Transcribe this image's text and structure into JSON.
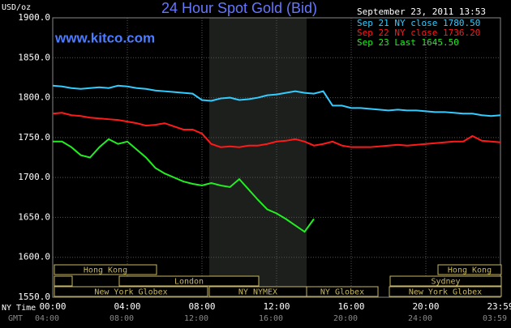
{
  "chart_data": {
    "type": "line",
    "title": "24 Hour Spot Gold (Bid)",
    "y_axis_label": "USD/oz",
    "watermark": "www.kitco.com",
    "timestamp": "September 23, 2011 13:53",
    "x_axis_label": "NY Time",
    "x2_axis_label": "GMT",
    "x": [
      0,
      0.5,
      1,
      1.5,
      2,
      2.5,
      3,
      3.5,
      4,
      4.5,
      5,
      5.5,
      6,
      6.5,
      7,
      7.5,
      8,
      8.5,
      9,
      9.5,
      10,
      10.5,
      11,
      11.5,
      12,
      12.5,
      13,
      13.5,
      14,
      14.5,
      15,
      15.5,
      16,
      16.5,
      17,
      17.5,
      18,
      18.5,
      19,
      19.5,
      20,
      20.5,
      21,
      21.5,
      22,
      22.5,
      23,
      23.5,
      24
    ],
    "series": [
      {
        "name": "Sep 21 NY close 1780.50",
        "color": "#33ccff",
        "values": [
          1815,
          1814,
          1812,
          1811,
          1812,
          1813,
          1812,
          1815,
          1814,
          1812,
          1811,
          1809,
          1808,
          1807,
          1806,
          1805,
          1797,
          1796,
          1799,
          1800,
          1797,
          1798,
          1800,
          1803,
          1804,
          1806,
          1808,
          1806,
          1805,
          1808,
          1790,
          1790,
          1787,
          1787,
          1786,
          1785,
          1784,
          1785,
          1784,
          1784,
          1783,
          1782,
          1782,
          1781,
          1780,
          1780,
          1778,
          1777,
          1778
        ]
      },
      {
        "name": "Sep 22 NY close 1736.20",
        "color": "#ff1a1a",
        "values": [
          1780,
          1781,
          1778,
          1777,
          1775,
          1774,
          1773,
          1772,
          1770,
          1768,
          1765,
          1766,
          1768,
          1764,
          1760,
          1760,
          1755,
          1742,
          1738,
          1739,
          1738,
          1740,
          1740,
          1742,
          1745,
          1746,
          1748,
          1745,
          1740,
          1742,
          1745,
          1740,
          1738,
          1738,
          1738,
          1739,
          1740,
          1741,
          1740,
          1741,
          1742,
          1743,
          1744,
          1745,
          1745,
          1752,
          1746,
          1745,
          1744
        ]
      },
      {
        "name": "Sep 23 Last 1645.50",
        "color": "#22ee22",
        "values": [
          1745,
          1745,
          1738,
          1728,
          1725,
          1738,
          1748,
          1742,
          1745,
          1735,
          1725,
          1712,
          1705,
          1700,
          1695,
          1692,
          1690,
          1693,
          1690,
          1688,
          1698,
          1685,
          1672,
          1660,
          1655,
          1648,
          1640,
          1632,
          1648,
          null,
          null,
          null,
          null,
          null,
          null,
          null,
          null,
          null,
          null,
          null,
          null,
          null,
          null,
          null,
          null,
          null,
          null,
          null,
          null
        ]
      }
    ],
    "xlim": [
      0,
      24
    ],
    "xticks": [
      {
        "value": 0,
        "label": "00:00"
      },
      {
        "value": 4,
        "label": "04:00"
      },
      {
        "value": 8,
        "label": "08:00"
      },
      {
        "value": 12,
        "label": "12:00"
      },
      {
        "value": 16,
        "label": "16:00"
      },
      {
        "value": 20,
        "label": "20:00"
      },
      {
        "value": 24,
        "label": "23:59"
      }
    ],
    "x2ticks": [
      "04:00",
      "08:00",
      "12:00",
      "16:00",
      "20:00",
      "24:00",
      "03:59"
    ],
    "ylim": [
      1550,
      1900
    ],
    "yticks": [
      {
        "value": 1550,
        "label": "1550.0"
      },
      {
        "value": 1600,
        "label": "1600.0"
      },
      {
        "value": 1650,
        "label": "1650.0"
      },
      {
        "value": 1700,
        "label": "1700.0"
      },
      {
        "value": 1750,
        "label": "1750.0"
      },
      {
        "value": 1800,
        "label": "1800.0"
      },
      {
        "value": 1850,
        "label": "1850.0"
      },
      {
        "value": 1900,
        "label": "1900.0"
      }
    ],
    "grid": true,
    "sessions": [
      "Hong Kong",
      "Hong Kong",
      "London",
      "Sydney",
      "New York Globex",
      "NY NYMEX",
      "NY Globex",
      "New York Globex"
    ]
  }
}
